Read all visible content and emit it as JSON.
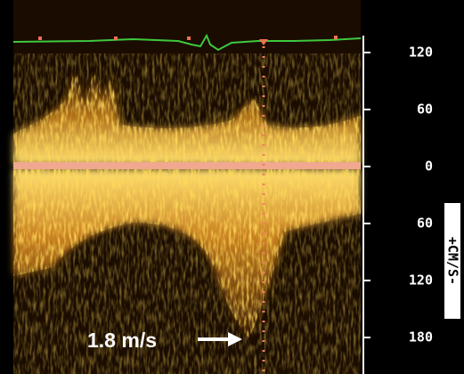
{
  "scale": {
    "labels": [
      "120",
      "60",
      "0",
      "60",
      "120",
      "180"
    ]
  },
  "unit_label": "+CM/S-",
  "annotation": "1.8 m/s"
}
